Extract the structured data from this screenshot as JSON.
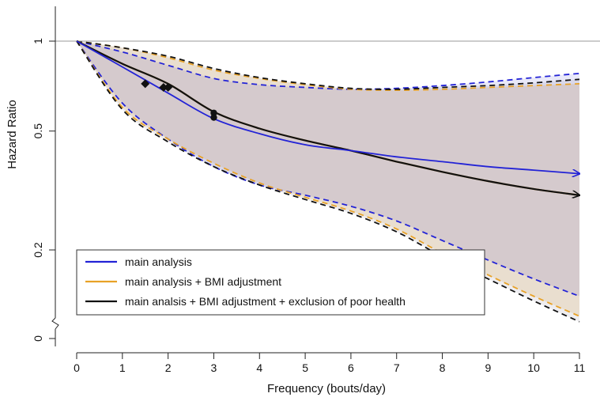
{
  "chart_data": {
    "type": "line",
    "xlabel": "Frequency (bouts/day)",
    "ylabel": "Hazard Ratio",
    "x_ticks": [
      "0",
      "1",
      "2",
      "3",
      "4",
      "5",
      "6",
      "7",
      "8",
      "9",
      "10",
      "11"
    ],
    "y_ticks": [
      "0",
      "0.2",
      "0.5",
      "1"
    ],
    "y_scale": "log",
    "y_axis_break": true,
    "xlim": [
      0,
      11
    ],
    "reference_line_y": 1,
    "legend": {
      "placement": "bottom-left"
    },
    "series": [
      {
        "name": "main analysis",
        "color": "#2323d6",
        "x": [
          0,
          1,
          2,
          3,
          4,
          5,
          6,
          7,
          8,
          9,
          10,
          11
        ],
        "y": [
          1.0,
          0.82,
          0.67,
          0.55,
          0.49,
          0.45,
          0.43,
          0.41,
          0.395,
          0.38,
          0.37,
          0.36
        ],
        "lower": [
          1.0,
          0.62,
          0.47,
          0.38,
          0.33,
          0.305,
          0.28,
          0.25,
          0.215,
          0.185,
          0.16,
          0.14
        ],
        "upper": [
          1.0,
          0.92,
          0.83,
          0.75,
          0.715,
          0.7,
          0.69,
          0.695,
          0.71,
          0.73,
          0.755,
          0.78
        ],
        "markers": [],
        "arrow": true
      },
      {
        "name": "main analysis + BMI adjustment",
        "color": "#e8a227",
        "x": [
          0,
          1,
          2,
          3,
          4,
          5,
          6,
          7,
          8,
          9,
          10,
          11
        ],
        "y": [
          1.0,
          0.84,
          0.72,
          0.58,
          0.51,
          0.465,
          0.43,
          0.395,
          0.365,
          0.34,
          0.32,
          0.305
        ],
        "lower": [
          1.0,
          0.6,
          0.47,
          0.39,
          0.335,
          0.3,
          0.27,
          0.235,
          0.195,
          0.165,
          0.14,
          0.12
        ],
        "upper": [
          1.0,
          0.95,
          0.88,
          0.8,
          0.75,
          0.715,
          0.69,
          0.685,
          0.69,
          0.7,
          0.71,
          0.72
        ],
        "markers": [],
        "arrow": false
      },
      {
        "name": "main analsis + BMI adjustment + exclusion of poor health",
        "color": "#111111",
        "x": [
          0,
          1,
          2,
          3,
          4,
          5,
          6,
          7,
          8,
          9,
          10,
          11
        ],
        "y": [
          1.0,
          0.84,
          0.72,
          0.58,
          0.51,
          0.465,
          0.43,
          0.395,
          0.365,
          0.34,
          0.32,
          0.305
        ],
        "lower": [
          1.0,
          0.59,
          0.46,
          0.38,
          0.33,
          0.295,
          0.265,
          0.23,
          0.19,
          0.16,
          0.135,
          0.115
        ],
        "upper": [
          1.0,
          0.95,
          0.89,
          0.81,
          0.755,
          0.72,
          0.695,
          0.69,
          0.7,
          0.71,
          0.725,
          0.745
        ],
        "markers": [
          {
            "x": 1.5,
            "y": 0.72,
            "shape": "diamond"
          },
          {
            "x": 1.9,
            "y": 0.7,
            "shape": "diamond"
          },
          {
            "x": 2.0,
            "y": 0.7,
            "shape": "diamond"
          },
          {
            "x": 3.0,
            "y": 0.575,
            "shape": "circle"
          },
          {
            "x": 3.0,
            "y": 0.555,
            "shape": "circle"
          }
        ],
        "arrow": true
      }
    ]
  }
}
